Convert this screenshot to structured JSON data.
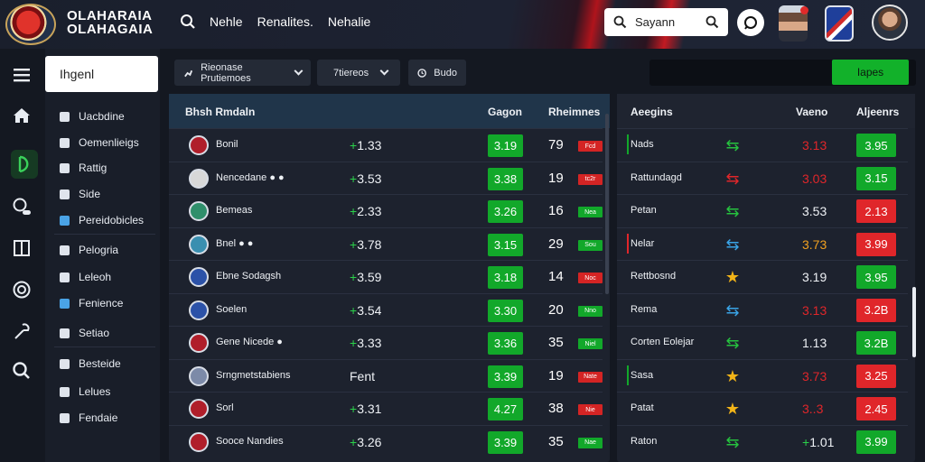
{
  "header": {
    "brand_line1": "OLAHARAIA",
    "brand_line2": "OLAHAGAIA",
    "nav": [
      "Nehle",
      "Renalites.",
      "Nehalie"
    ],
    "search_value": "Sayann"
  },
  "colors": {
    "accent": "#12b12a",
    "danger": "#e0262a",
    "header_red": "#c21a22"
  },
  "rail_icons": [
    "menu-icon",
    "home-icon",
    "sport-icon",
    "toggle-icon",
    "book-icon",
    "coin-icon",
    "tool-icon",
    "search-icon"
  ],
  "sidebar": {
    "search_value": "Ihgenl",
    "items": [
      {
        "label": "Uacbdine",
        "icon": "chevron-icon"
      },
      {
        "label": "Oemenlieigs",
        "icon": "person-icon"
      },
      {
        "label": "Rattig",
        "icon": "square-icon"
      },
      {
        "label": "Side",
        "icon": "shield-icon"
      },
      {
        "label": "Pereidobicles",
        "icon": "flag-icon"
      },
      {
        "label": "Pelogria",
        "icon": "list-icon"
      },
      {
        "label": "Leleoh",
        "icon": "square-icon"
      },
      {
        "label": "Fenience",
        "icon": "flag-icon"
      },
      {
        "label": "Setiao",
        "icon": "book-icon"
      },
      {
        "label": "Besteide",
        "icon": "doc-icon"
      },
      {
        "label": "Lelues",
        "icon": "doc-icon"
      },
      {
        "label": "Fendaie",
        "icon": "globe-icon"
      }
    ]
  },
  "filters": {
    "f1": "Rieonase Prutiemoes",
    "f2": "7tiereos",
    "f3": "Budo",
    "cta": "Iapes"
  },
  "main_table": {
    "headers": {
      "team": "Bhsh Rmdaln",
      "col1": "Gagon",
      "col2": "Rheimnes"
    },
    "rows": [
      {
        "team": "Bonil",
        "odds": "1.33",
        "sign": "+",
        "box": "3.19",
        "num": "79",
        "tag": "Fcd",
        "tag_color": "#d42424"
      },
      {
        "team": "Nencedane ● ●",
        "odds": "3.53",
        "sign": "+",
        "box": "3.38",
        "num": "19",
        "tag": "tc2r",
        "tag_color": "#d42424"
      },
      {
        "team": "Bemeas",
        "odds": "2.33",
        "sign": "+",
        "box": "3.26",
        "num": "16",
        "tag": "Nea",
        "tag_color": "#12a82a"
      },
      {
        "team": "Bnel ● ●",
        "odds": "3.78",
        "sign": "+",
        "box": "3.15",
        "num": "29",
        "tag": "Sou",
        "tag_color": "#12a82a"
      },
      {
        "team": "Ebne Sodagsh",
        "odds": "3.59",
        "sign": "+",
        "box": "3.18",
        "num": "14",
        "tag": "Noc",
        "tag_color": "#d42424"
      },
      {
        "team": "Soelen",
        "odds": "3.54",
        "sign": "+",
        "box": "3.30",
        "num": "20",
        "tag": "Nno",
        "tag_color": "#12a82a"
      },
      {
        "team": "Gene Nicede ●",
        "odds": "3.33",
        "sign": "+",
        "box": "3.36",
        "num": "35",
        "tag": "Niel",
        "tag_color": "#12a82a"
      },
      {
        "team": "Srngmetstabiens",
        "odds": "Fent",
        "sign": "",
        "box": "3.39",
        "num": "19",
        "tag": "Nate",
        "tag_color": "#d42424"
      },
      {
        "team": "Sorl",
        "odds": "3.31",
        "sign": "+",
        "box": "4.27",
        "num": "38",
        "tag": "Nie",
        "tag_color": "#d42424"
      },
      {
        "team": "Sooce Nandies",
        "odds": "3.26",
        "sign": "+",
        "box": "3.39",
        "num": "35",
        "tag": "Nae",
        "tag_color": "#12a82a"
      }
    ]
  },
  "side_table": {
    "headers": {
      "team": "Aeegins",
      "col1": "Vaeno",
      "col2": "Aljeenrs"
    },
    "rows": [
      {
        "name": "Nads",
        "mark": "#12a82a",
        "icon": "swap-icon",
        "icon_color": "#26c23f",
        "val": "3.13",
        "val_color": "#e0262a",
        "box": "3.95",
        "box_color": "#12a82a"
      },
      {
        "name": "Rattundagd",
        "mark": "",
        "icon": "swap-icon",
        "icon_color": "#e0262a",
        "val": "3.03",
        "val_color": "#e0262a",
        "box": "3.15",
        "box_color": "#12a82a"
      },
      {
        "name": "Petan",
        "mark": "",
        "icon": "swap-icon",
        "icon_color": "#26c23f",
        "val": "3.53",
        "val_color": "#eef1f5",
        "box": "2.13",
        "box_color": "#e0262a"
      },
      {
        "name": "Nelar",
        "mark": "#e0262a",
        "icon": "swap-icon",
        "icon_color": "#3aa4e6",
        "val": "3.73",
        "val_color": "#f0a020",
        "box": "3.99",
        "box_color": "#e0262a"
      },
      {
        "name": "Rettbosnd",
        "mark": "",
        "icon": "star-icon",
        "icon_color": "#f2b418",
        "val": "3.19",
        "val_color": "#eef1f5",
        "box": "3.95",
        "box_color": "#12a82a"
      },
      {
        "name": "Rema",
        "mark": "",
        "icon": "swap-icon",
        "icon_color": "#3aa4e6",
        "val": "3.13",
        "val_color": "#e0262a",
        "box": "3.2B",
        "box_color": "#e0262a"
      },
      {
        "name": "Corten Eolejar",
        "mark": "",
        "icon": "swap-icon",
        "icon_color": "#26c23f",
        "val": "1.13",
        "val_color": "#eef1f5",
        "box": "3.2B",
        "box_color": "#12a82a"
      },
      {
        "name": "Sasa",
        "mark": "#12a82a",
        "icon": "star-icon",
        "icon_color": "#f2b418",
        "val": "3.73",
        "val_color": "#e0262a",
        "box": "3.25",
        "box_color": "#e0262a"
      },
      {
        "name": "Patat",
        "mark": "",
        "icon": "star-icon",
        "icon_color": "#f2b418",
        "val": "3..3",
        "val_color": "#e0262a",
        "box": "2.45",
        "box_color": "#e0262a"
      },
      {
        "name": "Raton",
        "mark": "",
        "icon": "swap-icon",
        "icon_color": "#26c23f",
        "val": "1.01",
        "val_color": "#eef1f5",
        "val_sign": "+",
        "box": "3.99",
        "box_color": "#12a82a"
      }
    ]
  }
}
